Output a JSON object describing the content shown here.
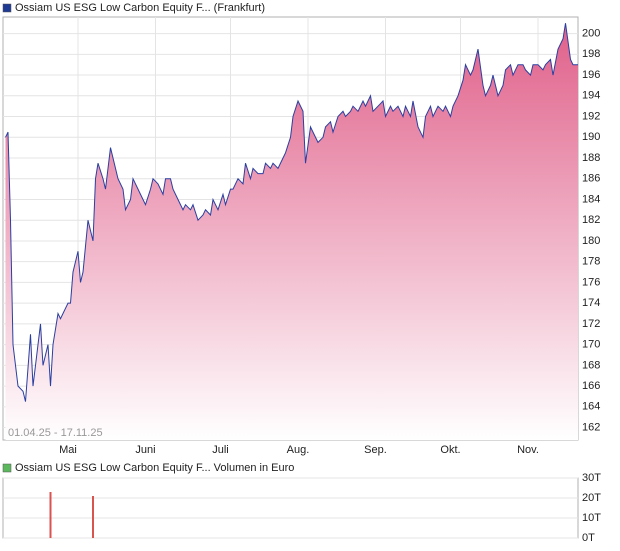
{
  "chart_data": [
    {
      "type": "area",
      "title": "Ossiam US ESG Low Carbon Equity F... (Frankfurt)",
      "annotation": "01.04.25 - 17.11.25",
      "legend_color": "#1f3a93",
      "color": "#2b3fa0",
      "fill_top": "#e0608a",
      "fill_bottom": "#ffffff",
      "grid": true,
      "y_axis_side": "right",
      "xlim": [
        0,
        230
      ],
      "ylim": [
        160.8,
        201.6
      ],
      "xticks": [
        {
          "value": 30,
          "label": "Mai"
        },
        {
          "value": 61,
          "label": "Juni"
        },
        {
          "value": 91,
          "label": "Juli"
        },
        {
          "value": 122,
          "label": "Aug."
        },
        {
          "value": 153,
          "label": "Sep."
        },
        {
          "value": 183,
          "label": "Okt."
        },
        {
          "value": 214,
          "label": "Nov."
        }
      ],
      "yticks": [
        162,
        164,
        166,
        168,
        170,
        172,
        174,
        176,
        178,
        180,
        182,
        184,
        186,
        188,
        190,
        192,
        194,
        196,
        198,
        200
      ],
      "x": [
        1,
        2,
        3,
        4,
        6,
        8,
        9,
        11,
        12,
        14,
        15,
        16,
        18,
        19,
        20,
        22,
        23,
        24,
        26,
        27,
        28,
        30,
        31,
        32,
        34,
        36,
        37,
        38,
        40,
        41,
        43,
        44,
        46,
        48,
        49,
        51,
        52,
        54,
        56,
        57,
        59,
        60,
        62,
        64,
        65,
        67,
        68,
        70,
        72,
        73,
        75,
        76,
        78,
        80,
        81,
        83,
        84,
        86,
        88,
        89,
        91,
        92,
        94,
        96,
        97,
        99,
        100,
        102,
        104,
        105,
        107,
        108,
        110,
        112,
        113,
        115,
        116,
        118,
        120,
        121,
        123,
        124,
        126,
        128,
        129,
        131,
        132,
        134,
        136,
        137,
        139,
        140,
        142,
        144,
        145,
        147,
        148,
        150,
        152,
        153,
        155,
        156,
        158,
        160,
        161,
        163,
        164,
        166,
        168,
        169,
        171,
        172,
        174,
        176,
        177,
        179,
        180,
        182,
        184,
        185,
        187,
        188,
        190,
        192,
        193,
        195,
        196,
        198,
        200,
        201,
        203,
        204,
        206,
        208,
        209,
        211,
        212,
        214,
        216,
        217,
        219,
        220,
        222,
        224,
        225,
        227,
        228,
        230
      ],
      "values": [
        190,
        190.5,
        182,
        170,
        166,
        165.5,
        164.5,
        171,
        166,
        170,
        172,
        168,
        170,
        166,
        170,
        173,
        172.5,
        173,
        174,
        174,
        177,
        179,
        176,
        177,
        182,
        180,
        186,
        187.5,
        186,
        185,
        189,
        188,
        186,
        185,
        183,
        184,
        186,
        185,
        184,
        183.5,
        185,
        186,
        185.5,
        184.5,
        186,
        186,
        185,
        184,
        183,
        183.5,
        183,
        183.5,
        182,
        182.5,
        183,
        182.5,
        184,
        183,
        184.5,
        183.5,
        185,
        185,
        186,
        185.5,
        187.5,
        186,
        187,
        186.5,
        186.5,
        187.5,
        187,
        187.5,
        187,
        188,
        188.5,
        190,
        192,
        193.5,
        192.5,
        187.5,
        191,
        190.5,
        189.5,
        190,
        191,
        191.5,
        190.5,
        192,
        192.5,
        192,
        192.5,
        193,
        192.5,
        193.5,
        193,
        194,
        192.5,
        193,
        193.5,
        192,
        193,
        192.5,
        193,
        192,
        193,
        192,
        193.5,
        191,
        190,
        192,
        193,
        192,
        193,
        192.5,
        193,
        192,
        193,
        194,
        195.5,
        197,
        196,
        196.5,
        198.5,
        195,
        194,
        195,
        196,
        194,
        195,
        196.5,
        197,
        196,
        197,
        197,
        196.5,
        196,
        197,
        197,
        196.5,
        197,
        197.5,
        196,
        198.5,
        199.5,
        201,
        197.5,
        197,
        197
      ]
    },
    {
      "type": "bar",
      "title": "Ossiam US ESG Low Carbon Equity F... Volumen in Euro",
      "legend_color": "#5cb85c",
      "color": "#d9534f",
      "grid": true,
      "y_axis_side": "right",
      "xlim": [
        0,
        230
      ],
      "ylim": [
        0,
        30000
      ],
      "yticks": [
        {
          "value": 0,
          "label": "0T"
        },
        {
          "value": 10000,
          "label": "10T"
        },
        {
          "value": 20000,
          "label": "20T"
        },
        {
          "value": 30000,
          "label": "30T"
        }
      ],
      "x": [
        19,
        36
      ],
      "values": [
        23000,
        21000
      ]
    }
  ]
}
